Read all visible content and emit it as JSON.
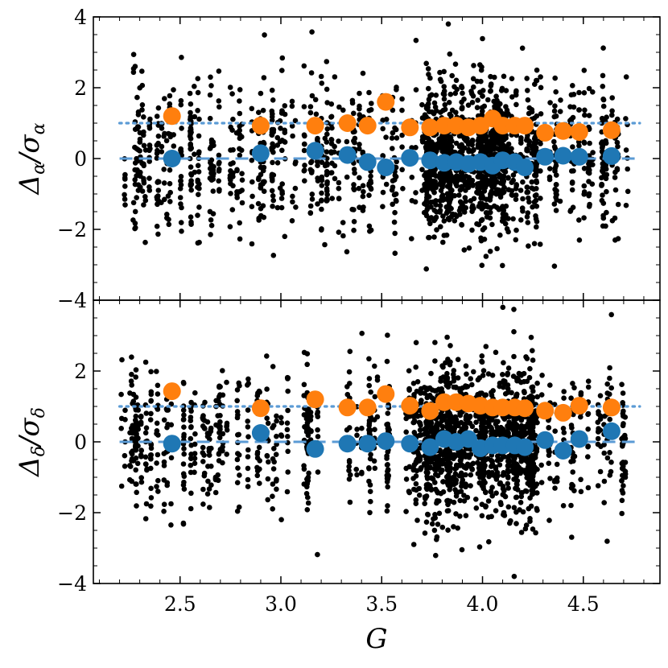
{
  "chart_data": [
    {
      "type": "scatter",
      "panel": "top",
      "ylabel_text": "Δ",
      "ylabel_sub1": "α",
      "ylabel_mid": "/σ",
      "ylabel_sub2": "α",
      "xlim": [
        2.07,
        4.88
      ],
      "ylim": [
        -4,
        4
      ],
      "yticks": [
        -4,
        -2,
        0,
        2,
        4
      ],
      "ytick_labels": [
        "−4",
        "−2",
        "0",
        "2",
        "4"
      ],
      "grid": false,
      "reference_lines": [
        {
          "style": "dashed",
          "y": 0,
          "color": "#5b9bd5"
        },
        {
          "style": "dotted",
          "y": 1,
          "color": "#5b9bd5"
        }
      ],
      "series": [
        {
          "role": "binned_std",
          "color": "#ff7f0e",
          "x": [
            2.46,
            2.9,
            3.17,
            3.33,
            3.43,
            3.52,
            3.64,
            3.74,
            3.81,
            3.87,
            3.93,
            3.99,
            4.05,
            4.1,
            4.16,
            4.21,
            4.31,
            4.4,
            4.48,
            4.64
          ],
          "y": [
            1.2,
            0.93,
            0.93,
            1.0,
            0.93,
            1.6,
            0.88,
            0.88,
            0.93,
            0.93,
            0.88,
            0.93,
            1.13,
            0.93,
            0.93,
            0.93,
            0.73,
            0.78,
            0.75,
            0.8
          ]
        },
        {
          "role": "binned_mean",
          "color": "#1f77b4",
          "x": [
            2.46,
            2.9,
            3.17,
            3.33,
            3.43,
            3.52,
            3.64,
            3.74,
            3.81,
            3.87,
            3.93,
            3.99,
            4.05,
            4.1,
            4.16,
            4.21,
            4.31,
            4.4,
            4.48,
            4.64
          ],
          "y": [
            0.0,
            0.15,
            0.22,
            0.1,
            -0.1,
            -0.25,
            0.02,
            -0.05,
            -0.12,
            -0.1,
            -0.15,
            -0.1,
            -0.2,
            -0.05,
            -0.1,
            -0.25,
            0.05,
            0.08,
            0.05,
            0.07
          ]
        }
      ]
    },
    {
      "type": "scatter",
      "panel": "bottom",
      "ylabel_text": "Δ",
      "ylabel_sub1": "δ",
      "ylabel_mid": "/σ",
      "ylabel_sub2": "δ",
      "xlabel": "G",
      "xlim": [
        2.07,
        4.88
      ],
      "ylim": [
        -4,
        4
      ],
      "xticks": [
        2.5,
        3.0,
        3.5,
        4.0,
        4.5
      ],
      "xtick_labels": [
        "2.5",
        "3.0",
        "3.5",
        "4.0",
        "4.5"
      ],
      "yticks": [
        -4,
        -2,
        0,
        2
      ],
      "ytick_labels": [
        "−4",
        "−2",
        "0",
        "2"
      ],
      "grid": false,
      "reference_lines": [
        {
          "style": "dashed",
          "y": 0,
          "color": "#5b9bd5"
        },
        {
          "style": "dotted",
          "y": 1,
          "color": "#5b9bd5"
        }
      ],
      "series": [
        {
          "role": "binned_std",
          "color": "#ff7f0e",
          "x": [
            2.46,
            2.9,
            3.17,
            3.33,
            3.43,
            3.52,
            3.64,
            3.74,
            3.81,
            3.87,
            3.93,
            3.99,
            4.05,
            4.1,
            4.16,
            4.21,
            4.31,
            4.4,
            4.48,
            4.64
          ],
          "y": [
            1.43,
            0.95,
            1.2,
            0.97,
            0.97,
            1.35,
            1.02,
            0.87,
            1.12,
            1.12,
            1.08,
            1.02,
            0.97,
            0.97,
            0.97,
            0.95,
            0.88,
            0.82,
            1.02,
            0.97
          ]
        },
        {
          "role": "binned_mean",
          "color": "#1f77b4",
          "x": [
            2.46,
            2.9,
            3.17,
            3.33,
            3.43,
            3.52,
            3.64,
            3.74,
            3.81,
            3.87,
            3.93,
            3.99,
            4.05,
            4.1,
            4.16,
            4.21,
            4.31,
            4.4,
            4.48,
            4.64
          ],
          "y": [
            -0.05,
            0.25,
            -0.2,
            -0.05,
            -0.05,
            0.02,
            -0.05,
            -0.15,
            0.08,
            0.0,
            0.08,
            -0.18,
            -0.1,
            -0.1,
            -0.1,
            -0.15,
            0.05,
            -0.25,
            0.08,
            0.3
          ]
        }
      ]
    }
  ]
}
